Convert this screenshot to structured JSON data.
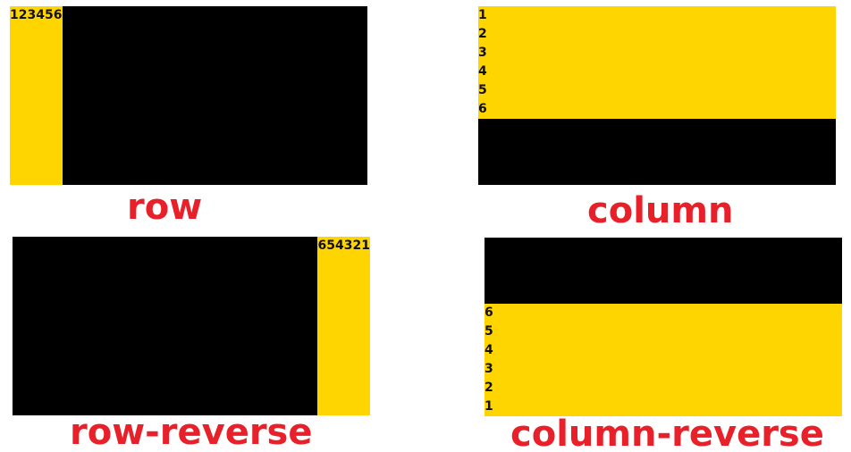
{
  "demos": {
    "row": {
      "label": "row",
      "items": [
        "1",
        "2",
        "3",
        "4",
        "5",
        "6"
      ]
    },
    "column": {
      "label": "column",
      "items": [
        "1",
        "2",
        "3",
        "4",
        "5",
        "6"
      ]
    },
    "row_reverse": {
      "label": "row-reverse",
      "items": [
        "1",
        "2",
        "3",
        "4",
        "5",
        "6"
      ]
    },
    "column_reverse": {
      "label": "column-reverse",
      "items": [
        "1",
        "2",
        "3",
        "4",
        "5",
        "6"
      ]
    }
  },
  "colors": {
    "panel_bg": "#000000",
    "strip_bg": "#FFD500",
    "label_color": "#E8202A",
    "item_text": "#111111"
  }
}
